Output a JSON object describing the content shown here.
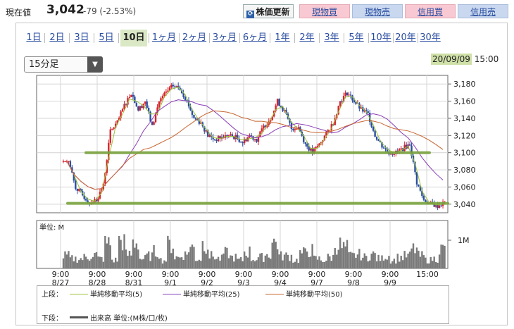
{
  "header": {
    "price_label": "現在値",
    "price_value": "3,042",
    "price_change": "-79 (-2.53%)",
    "buttons": [
      {
        "label": "株価更新",
        "icon": "refresh-icon"
      },
      {
        "label": "現物買"
      },
      {
        "label": "現物売"
      },
      {
        "label": "信用買"
      },
      {
        "label": "信用売"
      }
    ],
    "colors": {
      "buy": "#f8c9d2",
      "sell": "#c9d8ef"
    }
  },
  "periods": [
    "1日",
    "2日",
    "3日",
    "5日",
    "10日",
    "1ヶ月",
    "2ヶ月",
    "3ヶ月",
    "6ヶ月",
    "1年",
    "2年",
    "3年",
    "5年",
    "10年",
    "20年",
    "30年"
  ],
  "active_period": "10日",
  "interval_select": "15分足",
  "timestamp": {
    "date": "20/09/09",
    "time": "15:00"
  },
  "legend": {
    "upper_label": "上段：",
    "lower_label": "下段：",
    "ma5": "単純移動平均(5)",
    "ma25": "単純移動平均(25)",
    "ma50": "単純移動平均(50)",
    "volume": "出来高 単位:(M株/口/枚)"
  },
  "chart_data": {
    "type": "candlestick",
    "price_axis": {
      "ticks": [
        "3,180",
        "3,160",
        "3,140",
        "3,120",
        "3,100",
        "3,080",
        "3,060",
        "3,040"
      ],
      "ylim": [
        3030,
        3190
      ]
    },
    "volume_axis": {
      "unit_label": "単位: M",
      "tick": "1M"
    },
    "days": [
      {
        "time": "9:00",
        "date": "8/27"
      },
      {
        "time": "9:00",
        "date": "8/28"
      },
      {
        "time": "9:00",
        "date": "8/31"
      },
      {
        "time": "9:00",
        "date": "9/1"
      },
      {
        "time": "9:00",
        "date": "9/2"
      },
      {
        "time": "9:00",
        "date": "9/3"
      },
      {
        "time": "9:00",
        "date": "9/4"
      },
      {
        "time": "9:00",
        "date": "9/7"
      },
      {
        "time": "9:00",
        "date": "9/8"
      },
      {
        "time": "9:00",
        "date": "9/9"
      }
    ],
    "end_label": "15:00",
    "closes": [
      3090,
      3060,
      3050,
      3042,
      3045,
      3062,
      3125,
      3135,
      3155,
      3170,
      3150,
      3160,
      3130,
      3160,
      3170,
      3178,
      3175,
      3160,
      3140,
      3135,
      3120,
      3115,
      3118,
      3120,
      3118,
      3112,
      3120,
      3115,
      3130,
      3140,
      3160,
      3148,
      3128,
      3130,
      3110,
      3100,
      3110,
      3122,
      3135,
      3160,
      3170,
      3160,
      3150,
      3145,
      3120,
      3108,
      3100,
      3100,
      3105,
      3110,
      3065,
      3045,
      3040,
      3038,
      3042
    ],
    "volume": [
      0.45,
      0.35,
      0.35,
      0.4,
      0.5,
      0.35,
      0.9,
      0.3,
      1.0,
      0.5,
      0.95,
      0.35,
      0.45,
      0.6,
      0.3,
      0.85,
      0.4,
      0.5,
      0.75,
      0.35,
      0.9,
      0.45,
      0.35,
      0.55,
      0.4,
      0.3,
      0.6,
      0.35,
      0.4,
      0.5,
      0.95,
      0.45,
      0.45,
      0.3,
      0.55,
      0.65,
      0.35,
      0.3,
      0.4,
      0.85,
      0.75,
      0.45,
      0.5,
      0.4,
      0.5,
      0.35,
      0.45,
      0.3,
      0.4,
      0.45,
      0.7,
      0.45,
      0.3,
      0.35,
      0.7
    ],
    "grid": true,
    "series": [
      {
        "name": "単純移動平均(5)",
        "color": "#9bc33a"
      },
      {
        "name": "単純移動平均(25)",
        "color": "#8a3fb8"
      },
      {
        "name": "単純移動平均(50)",
        "color": "#c8642e"
      }
    ],
    "support_lines": [
      3100,
      3041
    ],
    "support_color": "#7aa33e"
  }
}
